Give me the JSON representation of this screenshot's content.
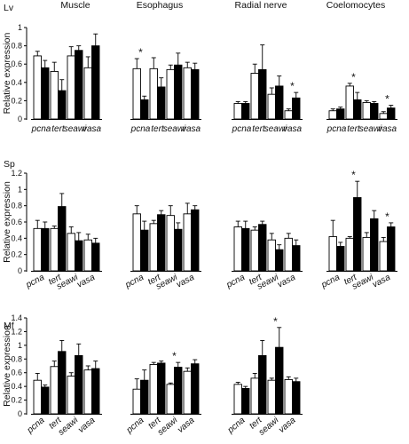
{
  "chart_data": {
    "type": "bar",
    "tissues": [
      "Muscle",
      "Esophagus",
      "Radial nerve",
      "Coelomocytes"
    ],
    "genes": [
      "pcna",
      "tert",
      "seawi",
      "vasa"
    ],
    "ylabel": "Relative expression",
    "legend": "none",
    "grid": false,
    "bar_colors": {
      "open": "#ffffff",
      "filled": "#000000",
      "outline": "#000000"
    },
    "panels": [
      {
        "label": "Lv",
        "ylim": [
          0,
          1
        ],
        "yticks": [
          "0",
          "0.2",
          "0.4",
          "0.6",
          "0.8",
          "1"
        ],
        "groups": [
          {
            "tissue": "Muscle",
            "bars": [
              {
                "open": 0.69,
                "open_err": 0.05,
                "filled": 0.56,
                "filled_err": 0.08,
                "star": false
              },
              {
                "open": 0.52,
                "open_err": 0.1,
                "filled": 0.31,
                "filled_err": 0.12,
                "star": false
              },
              {
                "open": 0.69,
                "open_err": 0.1,
                "filled": 0.75,
                "filled_err": 0.05,
                "star": false
              },
              {
                "open": 0.56,
                "open_err": 0.12,
                "filled": 0.8,
                "filled_err": 0.13,
                "star": false
              }
            ]
          },
          {
            "tissue": "Esophagus",
            "bars": [
              {
                "open": 0.55,
                "open_err": 0.11,
                "filled": 0.21,
                "filled_err": 0.04,
                "star": true
              },
              {
                "open": 0.55,
                "open_err": 0.12,
                "filled": 0.35,
                "filled_err": 0.1,
                "star": false
              },
              {
                "open": 0.54,
                "open_err": 0.05,
                "filled": 0.59,
                "filled_err": 0.13,
                "star": false
              },
              {
                "open": 0.56,
                "open_err": 0.06,
                "filled": 0.54,
                "filled_err": 0.07,
                "star": false
              }
            ]
          },
          {
            "tissue": "Radial nerve",
            "bars": [
              {
                "open": 0.17,
                "open_err": 0.02,
                "filled": 0.17,
                "filled_err": 0.02,
                "star": false
              },
              {
                "open": 0.5,
                "open_err": 0.1,
                "filled": 0.54,
                "filled_err": 0.27,
                "star": false
              },
              {
                "open": 0.27,
                "open_err": 0.07,
                "filled": 0.36,
                "filled_err": 0.11,
                "star": false
              },
              {
                "open": 0.09,
                "open_err": 0.02,
                "filled": 0.23,
                "filled_err": 0.06,
                "star": true
              }
            ]
          },
          {
            "tissue": "Coelomocytes",
            "bars": [
              {
                "open": 0.09,
                "open_err": 0.02,
                "filled": 0.11,
                "filled_err": 0.02,
                "star": false
              },
              {
                "open": 0.36,
                "open_err": 0.03,
                "filled": 0.21,
                "filled_err": 0.08,
                "star": true
              },
              {
                "open": 0.18,
                "open_err": 0.02,
                "filled": 0.17,
                "filled_err": 0.02,
                "star": false
              },
              {
                "open": 0.06,
                "open_err": 0.02,
                "filled": 0.12,
                "filled_err": 0.03,
                "star": true
              }
            ]
          }
        ]
      },
      {
        "label": "Sp",
        "ylim": [
          0,
          1.2
        ],
        "yticks": [
          "0",
          "0.2",
          "0.4",
          "0.6",
          "0.8",
          "1",
          "1.2"
        ],
        "groups": [
          {
            "tissue": "Muscle",
            "bars": [
              {
                "open": 0.52,
                "open_err": 0.1,
                "filled": 0.52,
                "filled_err": 0.08,
                "star": false
              },
              {
                "open": 0.52,
                "open_err": 0.03,
                "filled": 0.79,
                "filled_err": 0.16,
                "star": false
              },
              {
                "open": 0.46,
                "open_err": 0.08,
                "filled": 0.37,
                "filled_err": 0.1,
                "star": false
              },
              {
                "open": 0.38,
                "open_err": 0.07,
                "filled": 0.34,
                "filled_err": 0.06,
                "star": false
              }
            ]
          },
          {
            "tissue": "Esophagus",
            "bars": [
              {
                "open": 0.7,
                "open_err": 0.1,
                "filled": 0.5,
                "filled_err": 0.11,
                "star": false
              },
              {
                "open": 0.58,
                "open_err": 0.04,
                "filled": 0.69,
                "filled_err": 0.05,
                "star": false
              },
              {
                "open": 0.68,
                "open_err": 0.12,
                "filled": 0.51,
                "filled_err": 0.08,
                "star": false
              },
              {
                "open": 0.7,
                "open_err": 0.13,
                "filled": 0.75,
                "filled_err": 0.05,
                "star": false
              }
            ]
          },
          {
            "tissue": "Radial nerve",
            "bars": [
              {
                "open": 0.54,
                "open_err": 0.07,
                "filled": 0.52,
                "filled_err": 0.09,
                "star": false
              },
              {
                "open": 0.5,
                "open_err": 0.04,
                "filled": 0.57,
                "filled_err": 0.04,
                "star": false
              },
              {
                "open": 0.38,
                "open_err": 0.08,
                "filled": 0.26,
                "filled_err": 0.06,
                "star": false
              },
              {
                "open": 0.4,
                "open_err": 0.06,
                "filled": 0.31,
                "filled_err": 0.07,
                "star": false
              }
            ]
          },
          {
            "tissue": "Coelomocytes",
            "bars": [
              {
                "open": 0.42,
                "open_err": 0.2,
                "filled": 0.3,
                "filled_err": 0.05,
                "star": false
              },
              {
                "open": 0.4,
                "open_err": 0.02,
                "filled": 0.9,
                "filled_err": 0.2,
                "star": true
              },
              {
                "open": 0.41,
                "open_err": 0.06,
                "filled": 0.64,
                "filled_err": 0.1,
                "star": false
              },
              {
                "open": 0.36,
                "open_err": 0.05,
                "filled": 0.54,
                "filled_err": 0.05,
                "star": true
              }
            ]
          }
        ]
      },
      {
        "label": "Mf",
        "ylim": [
          0,
          1.4
        ],
        "yticks": [
          "0",
          "0.2",
          "0.4",
          "0.6",
          "0.8",
          "1",
          "1.2",
          "1.4"
        ],
        "groups": [
          {
            "tissue": "Muscle",
            "bars": [
              {
                "open": 0.49,
                "open_err": 0.1,
                "filled": 0.39,
                "filled_err": 0.03,
                "star": false
              },
              {
                "open": 0.69,
                "open_err": 0.08,
                "filled": 0.91,
                "filled_err": 0.16,
                "star": false
              },
              {
                "open": 0.55,
                "open_err": 0.05,
                "filled": 0.85,
                "filled_err": 0.17,
                "star": false
              },
              {
                "open": 0.64,
                "open_err": 0.06,
                "filled": 0.66,
                "filled_err": 0.11,
                "star": false
              }
            ]
          },
          {
            "tissue": "Esophagus",
            "bars": [
              {
                "open": 0.36,
                "open_err": 0.15,
                "filled": 0.49,
                "filled_err": 0.15,
                "star": false
              },
              {
                "open": 0.72,
                "open_err": 0.03,
                "filled": 0.74,
                "filled_err": 0.03,
                "star": false
              },
              {
                "open": 0.43,
                "open_err": 0.02,
                "filled": 0.68,
                "filled_err": 0.07,
                "star": true
              },
              {
                "open": 0.62,
                "open_err": 0.05,
                "filled": 0.73,
                "filled_err": 0.06,
                "star": false
              }
            ]
          },
          {
            "tissue": "Radial nerve",
            "bars": [
              {
                "open": 0.43,
                "open_err": 0.03,
                "filled": 0.37,
                "filled_err": 0.03,
                "star": false
              },
              {
                "open": 0.52,
                "open_err": 0.07,
                "filled": 0.85,
                "filled_err": 0.22,
                "star": false
              },
              {
                "open": 0.49,
                "open_err": 0.03,
                "filled": 0.97,
                "filled_err": 0.29,
                "star": true
              },
              {
                "open": 0.5,
                "open_err": 0.04,
                "filled": 0.47,
                "filled_err": 0.05,
                "star": false
              }
            ]
          },
          {
            "tissue": "Coelomocytes",
            "bars": []
          }
        ]
      }
    ]
  }
}
